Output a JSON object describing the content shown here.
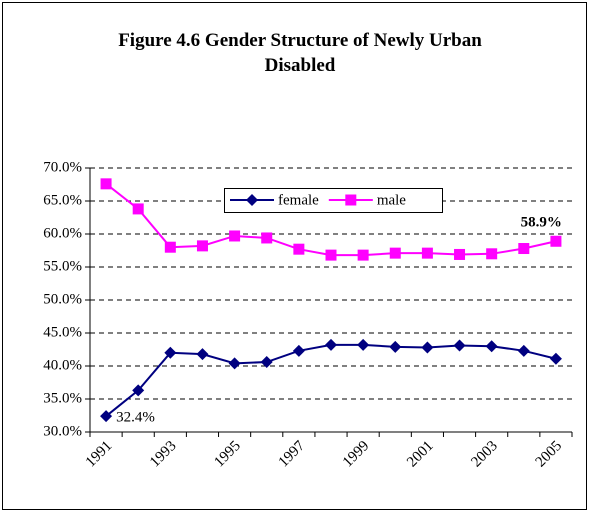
{
  "chart_data": {
    "type": "line",
    "title": "Figure 4.6 Gender Structure of Newly Urban Disabled",
    "categories": [
      "1991",
      null,
      "1993",
      null,
      "1995",
      null,
      "1997",
      null,
      "1999",
      null,
      "2001",
      null,
      "2003",
      null,
      "2005"
    ],
    "series": [
      {
        "name": "female",
        "color": "#000080",
        "marker": "diamond",
        "values": [
          32.4,
          36.3,
          42.0,
          41.8,
          40.4,
          40.6,
          42.3,
          43.2,
          43.2,
          42.9,
          42.8,
          43.1,
          43.0,
          42.3,
          41.1
        ],
        "value_labels": [
          "32.4%",
          null,
          null,
          null,
          null,
          null,
          null,
          null,
          null,
          null,
          null,
          null,
          null,
          null,
          null
        ]
      },
      {
        "name": "male",
        "color": "#ff00ff",
        "marker": "square",
        "values": [
          67.6,
          63.8,
          58.0,
          58.2,
          59.7,
          59.4,
          57.7,
          56.8,
          56.8,
          57.1,
          57.1,
          56.9,
          57.0,
          57.8,
          58.9
        ],
        "value_labels": [
          null,
          null,
          null,
          null,
          null,
          null,
          null,
          null,
          null,
          null,
          null,
          null,
          null,
          null,
          "58.9%"
        ]
      }
    ],
    "ylim": [
      30,
      70
    ],
    "yticks": [
      {
        "value": 30,
        "label": "30.0%"
      },
      {
        "value": 35,
        "label": "35.0%"
      },
      {
        "value": 40,
        "label": "40.0%"
      },
      {
        "value": 45,
        "label": "45.0%"
      },
      {
        "value": 50,
        "label": "50.0%"
      },
      {
        "value": 55,
        "label": "55.0%"
      },
      {
        "value": 60,
        "label": "60.0%"
      },
      {
        "value": 65,
        "label": "65.0%"
      },
      {
        "value": 70,
        "label": "70.0%"
      }
    ],
    "grid": true,
    "legend": "top"
  }
}
